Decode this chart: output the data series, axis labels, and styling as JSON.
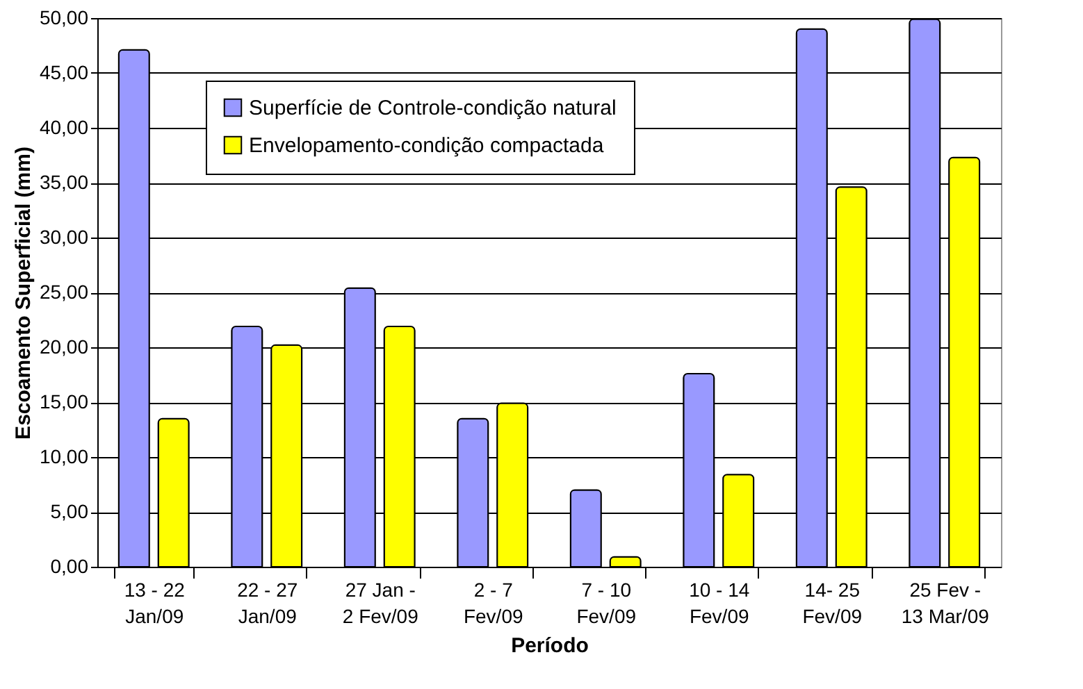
{
  "chart_data": {
    "type": "bar",
    "xlabel": "Período",
    "ylabel": "Escoamento Superficial (mm)",
    "categories": [
      "13 - 22\nJan/09",
      "22 - 27\nJan/09",
      "27 Jan -\n2 Fev/09",
      "2 - 7\nFev/09",
      "7 - 10\nFev/09",
      "10 - 14\nFev/09",
      "14- 25\nFev/09",
      "25 Fev -\n13 Mar/09"
    ],
    "series": [
      {
        "name": "Superfície de Controle-condição natural",
        "color": "#9999ff",
        "values": [
          47.1,
          21.9,
          25.4,
          13.5,
          7.0,
          17.6,
          49.0,
          49.9
        ]
      },
      {
        "name": "Envelopamento-condição compactada",
        "color": "#ffff00",
        "values": [
          13.5,
          20.2,
          21.9,
          14.9,
          0.9,
          8.4,
          34.6,
          37.3
        ]
      }
    ],
    "ylim": [
      0,
      50
    ],
    "yticks": [
      {
        "value": 0,
        "label": "0,00"
      },
      {
        "value": 5,
        "label": "5,00"
      },
      {
        "value": 10,
        "label": "10,00"
      },
      {
        "value": 15,
        "label": "15,00"
      },
      {
        "value": 20,
        "label": "20,00"
      },
      {
        "value": 25,
        "label": "25,00"
      },
      {
        "value": 30,
        "label": "30,00"
      },
      {
        "value": 35,
        "label": "35,00"
      },
      {
        "value": 40,
        "label": "40,00"
      },
      {
        "value": 45,
        "label": "45,00"
      },
      {
        "value": 50,
        "label": "50,00"
      }
    ],
    "grid": "y",
    "legend": "top"
  }
}
